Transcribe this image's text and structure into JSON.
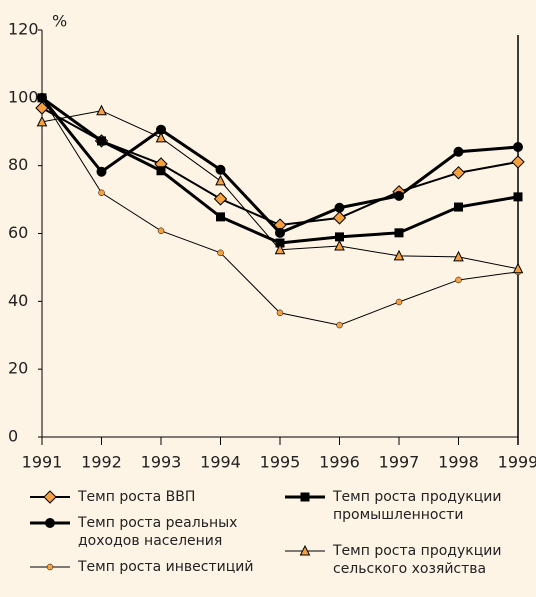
{
  "chart_data": {
    "type": "line",
    "y_label": "%",
    "x": [
      "1991",
      "1992",
      "1993",
      "1994",
      "1995",
      "1996",
      "1997",
      "1998",
      "1999"
    ],
    "ylim": [
      0,
      120
    ],
    "yticks": [
      0,
      20,
      40,
      60,
      80,
      100,
      120
    ],
    "series": [
      {
        "name": "Темп роста ВВП",
        "color": "#000000",
        "marker": "diamond",
        "marker_color": "#f4a040",
        "values": [
          97,
          87.3,
          80.5,
          70.2,
          62.5,
          64.6,
          72.3,
          77.9,
          81.1
        ]
      },
      {
        "name": "Темп роста реальных доходов населения",
        "color": "#000000",
        "marker": "circle",
        "marker_color": "#000000",
        "values": [
          100,
          78.2,
          90.6,
          78.8,
          60.2,
          67.6,
          71.1,
          84.1,
          85.5
        ]
      },
      {
        "name": "Темп роста инвестиций",
        "color": "#000000",
        "marker": "dot",
        "marker_color": "#f4a040",
        "values": [
          100,
          72,
          60.8,
          54.3,
          36.6,
          33,
          39.8,
          46.3,
          48.7
        ]
      },
      {
        "name": "Темп роста продукции промышленности",
        "color": "#000000",
        "marker": "square",
        "marker_color": "#000000",
        "values": [
          100,
          87.3,
          78.5,
          64.9,
          57.2,
          59,
          60.2,
          67.8,
          70.8
        ]
      },
      {
        "name": "Темп роста продукции сельского хозяйства",
        "color": "#000000",
        "marker": "triangle",
        "marker_color": "#f4a040",
        "values": [
          92.9,
          96.2,
          88.2,
          75.5,
          55.2,
          56.3,
          53.4,
          53.1,
          49.6
        ]
      }
    ]
  }
}
